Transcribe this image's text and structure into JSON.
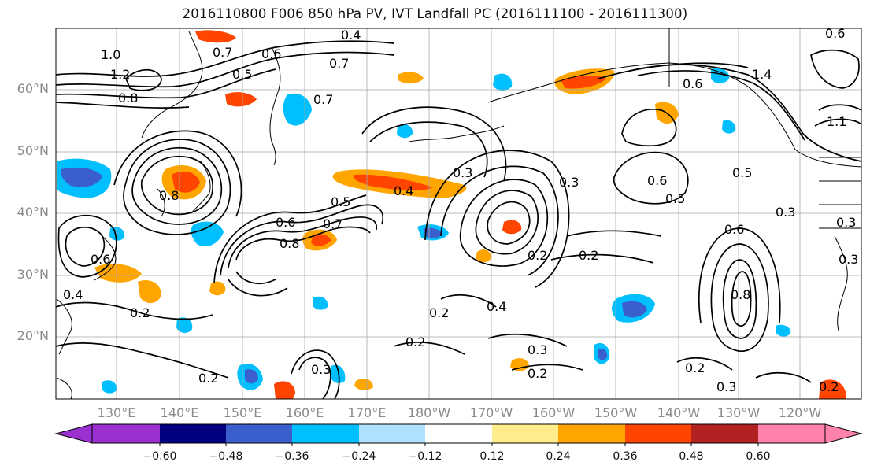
{
  "title": "2016110800 F006 850 hPa PV, IVT Landfall PC (2016111100 - 2016111300)",
  "lat_labels": [
    "60°N",
    "50°N",
    "40°N",
    "30°N",
    "20°N"
  ],
  "lon_labels": [
    "130°E",
    "140°E",
    "150°E",
    "160°E",
    "170°E",
    "180°W",
    "170°W",
    "160°W",
    "150°W",
    "140°W",
    "130°W",
    "120°W"
  ],
  "colorbar": {
    "colors": [
      "#9b30d0",
      "#000080",
      "#3a5fcd",
      "#00bfff",
      "#b0e2ff",
      "#ffffff",
      "#ffec8b",
      "#ffa500",
      "#ff4500",
      "#b22222",
      "#ff82ab"
    ],
    "tick_labels": [
      "−0.60",
      "−0.48",
      "−0.36",
      "−0.24",
      "−0.12",
      "0.12",
      "0.24",
      "0.36",
      "0.48",
      "0.60"
    ]
  },
  "contour_labels": [
    "1.0",
    "0.7",
    "0.4",
    "0.7",
    "0.6",
    "0.5",
    "0.8",
    "1.2",
    "0.7",
    "0.3",
    "0.4",
    "0.5",
    "0.6",
    "0.8",
    "0.7",
    "0.6",
    "0.8",
    "0.4",
    "0.3",
    "0.2",
    "0.2",
    "0.4",
    "0.2",
    "0.3",
    "0.2",
    "0.3",
    "0.2",
    "0.5",
    "0.6",
    "0.3",
    "0.6",
    "0.5",
    "0.6",
    "0.3",
    "0.8",
    "0.6",
    "1.4",
    "1.1",
    "0.2",
    "0.3",
    "0.2",
    "0.2",
    "0.3",
    "0.2"
  ]
}
